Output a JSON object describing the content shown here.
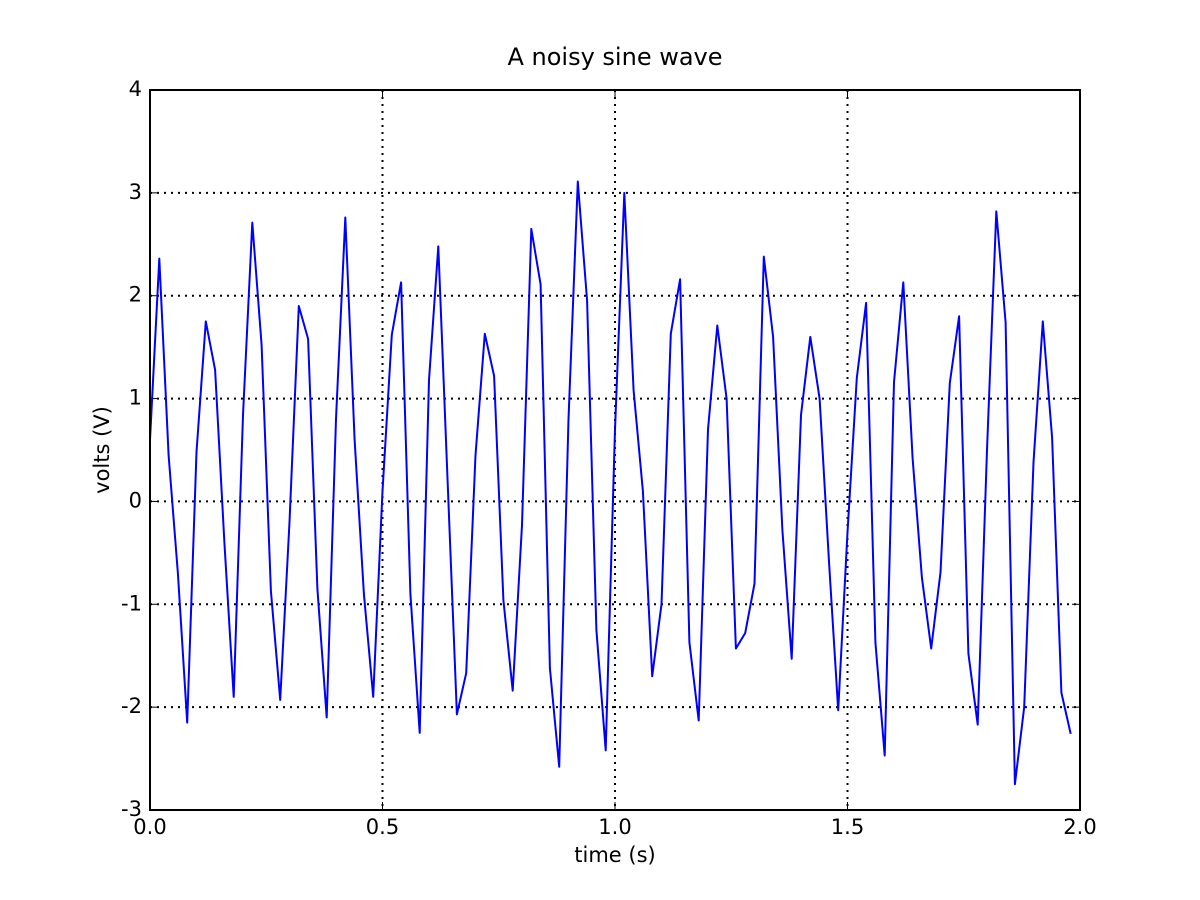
{
  "chart_data": {
    "type": "line",
    "title": "A noisy sine wave",
    "xlabel": "time (s)",
    "ylabel": "volts (V)",
    "x": [
      0,
      0.02,
      0.04,
      0.06,
      0.08,
      0.1,
      0.12,
      0.14,
      0.16,
      0.18,
      0.2,
      0.22,
      0.24,
      0.26,
      0.28,
      0.3,
      0.32,
      0.34,
      0.36,
      0.38,
      0.4,
      0.42,
      0.44,
      0.46,
      0.48,
      0.5,
      0.52,
      0.54,
      0.56,
      0.58,
      0.6,
      0.62,
      0.64,
      0.66,
      0.68,
      0.7,
      0.72,
      0.74,
      0.76,
      0.78,
      0.8,
      0.82,
      0.84,
      0.86,
      0.88,
      0.9,
      0.92,
      0.94,
      0.96,
      0.98,
      1,
      1.02,
      1.04,
      1.06,
      1.08,
      1.1,
      1.12,
      1.14,
      1.16,
      1.18,
      1.2,
      1.22,
      1.24,
      1.26,
      1.28,
      1.3,
      1.32,
      1.34,
      1.36,
      1.38,
      1.4,
      1.42,
      1.44,
      1.46,
      1.48,
      1.5,
      1.52,
      1.54,
      1.56,
      1.58,
      1.6,
      1.62,
      1.64,
      1.66,
      1.68,
      1.7,
      1.72,
      1.74,
      1.76,
      1.78,
      1.8,
      1.82,
      1.84,
      1.86,
      1.88,
      1.9,
      1.92,
      1.94,
      1.96,
      1.98
    ],
    "series": [
      {
        "color": "#0000ff",
        "values": [
          0.6,
          2.36,
          0.45,
          -0.7,
          -2.15,
          0.48,
          1.75,
          1.28,
          -0.4,
          -1.9,
          0.84,
          2.71,
          1.52,
          -0.87,
          -1.93,
          -0.2,
          1.9,
          1.58,
          -0.85,
          -2.1,
          0.8,
          2.76,
          0.6,
          -0.9,
          -1.9,
          0.1,
          1.62,
          2.13,
          -0.9,
          -2.25,
          1.18,
          2.48,
          0.2,
          -2.07,
          -1.67,
          0.45,
          1.63,
          1.22,
          -0.96,
          -1.84,
          -0.23,
          2.65,
          2.11,
          -1.62,
          -2.58,
          0.8,
          3.11,
          1.95,
          -1.25,
          -2.42,
          0.7,
          3.0,
          1.08,
          0.1,
          -1.7,
          -1.0,
          1.63,
          2.16,
          -1.37,
          -2.13,
          0.7,
          1.71,
          1.0,
          -1.43,
          -1.28,
          -0.8,
          2.38,
          1.6,
          -0.28,
          -1.53,
          0.84,
          1.6,
          1.0,
          -0.57,
          -2.03,
          -0.3,
          1.2,
          1.93,
          -1.37,
          -2.47,
          1.16,
          2.13,
          0.42,
          -0.74,
          -1.43,
          -0.69,
          1.15,
          1.8,
          -1.48,
          -2.17,
          0.5,
          2.82,
          1.74,
          -2.75,
          -2.0,
          0.38,
          1.75,
          0.62,
          -1.86,
          -2.26
        ]
      }
    ],
    "xlim": [
      0,
      2
    ],
    "ylim": [
      -3,
      4
    ],
    "xticks": [
      {
        "value": 0,
        "label": "0.0"
      },
      0.5,
      {
        "value": 1,
        "label": "1.0"
      },
      1.5,
      {
        "value": 2,
        "label": "2.0"
      }
    ],
    "yticks": [
      -3,
      -2,
      -1,
      0,
      1,
      2,
      3,
      4
    ],
    "grid": true
  }
}
